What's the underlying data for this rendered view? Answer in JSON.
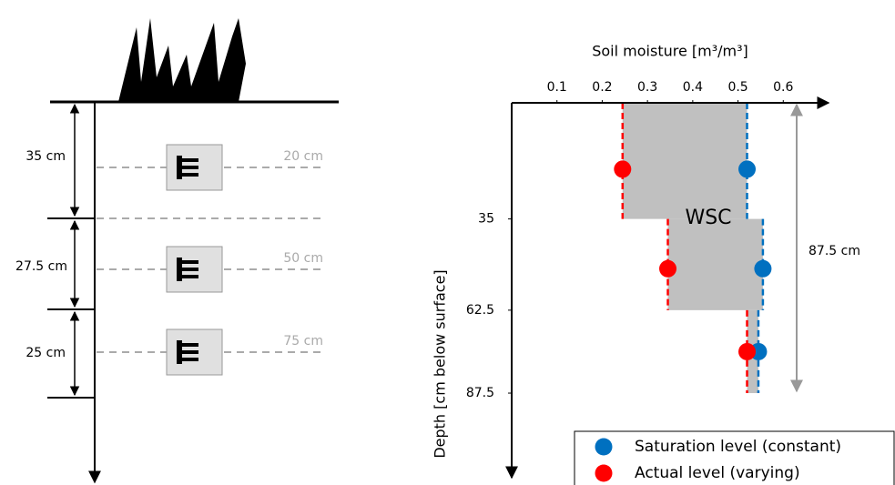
{
  "diagram": {
    "layers": [
      "35 cm",
      "27.5 cm",
      "25 cm"
    ],
    "sensors": [
      "20 cm",
      "50 cm",
      "75 cm"
    ]
  },
  "chart_data": {
    "type": "step-profile",
    "x_label": "Soil moisture [m³/m³]",
    "y_label": "Depth [cm below surface]",
    "xlim": [
      0,
      0.7
    ],
    "xticks": [
      0.1,
      0.2,
      0.3,
      0.4,
      0.5,
      0.6
    ],
    "ylim": [
      0,
      113
    ],
    "yticks": [
      35,
      62.5,
      87.5
    ],
    "layer_edges": [
      0,
      35,
      62.5,
      87.5
    ],
    "sensor_depths": [
      20,
      50,
      75
    ],
    "series": [
      {
        "name": "Saturation level (constant)",
        "color": "#0070c0",
        "values": [
          0.52,
          0.555,
          0.545
        ]
      },
      {
        "name": "Actual level (varying)",
        "color": "#ff0000",
        "values": [
          0.245,
          0.345,
          0.52
        ]
      }
    ],
    "fill_color": "#c0c0c0",
    "area_label": "WSC",
    "span_annotation": {
      "label": "87.5 cm",
      "from": 0,
      "to": 87.5
    }
  }
}
